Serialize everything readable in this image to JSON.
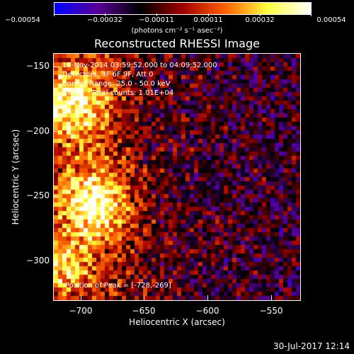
{
  "colorbar": {
    "ticks": [
      "−0.00054",
      "−0.00032",
      "−0.00011",
      "0.00011",
      "0.00032",
      "0.00054"
    ],
    "unit_label": "(photons cm⁻² s⁻¹ asec⁻²)",
    "colors": [
      "#0000ff",
      "#5a0098",
      "#000000",
      "#a00000",
      "#ff6000",
      "#ffff40",
      "#ffffff"
    ]
  },
  "title": "Reconstructed RHESSI Image",
  "annotations": {
    "time_range": "12-Nov-2014 03:59:52.000 to 04:09:52.000",
    "detectors": "Detectors: 3F 6F 9F, Att 0",
    "energy": "Energy Range: 25.0 - 50.0 keV",
    "clean": "Clean    Total counts: 1.01E+04",
    "peak": "Position of Peak = [-728,-269]"
  },
  "axes": {
    "xlabel": "Heliocentric X (arcsec)",
    "ylabel": "Heliocentric Y (arcsec)",
    "xticks": [
      "−700",
      "−650",
      "−600",
      "−550"
    ],
    "yticks": [
      "−150",
      "−200",
      "−250",
      "−300"
    ],
    "xrange": [
      -735,
      -540
    ],
    "yrange": [
      -330,
      -135
    ]
  },
  "footer": {
    "timestamp": "30-Jul-2017 12:14"
  }
}
